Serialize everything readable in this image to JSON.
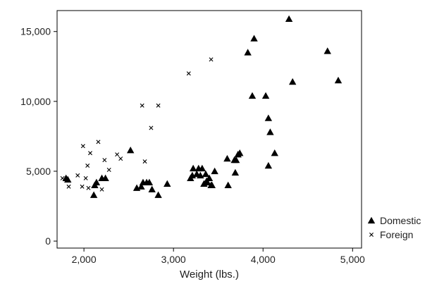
{
  "chart_data": {
    "type": "scatter",
    "xlabel": "Weight (lbs.)",
    "ylabel": "",
    "xlim": [
      1700,
      5100
    ],
    "ylim": [
      -500,
      16500
    ],
    "x_ticks": [
      2000,
      3000,
      4000,
      5000
    ],
    "x_tick_labels": [
      "2,000",
      "3,000",
      "4,000",
      "5,000"
    ],
    "y_ticks": [
      0,
      5000,
      10000,
      15000
    ],
    "y_tick_labels": [
      "0",
      "5,000",
      "10,000",
      "15,000"
    ],
    "grid": false,
    "legend_position": "bottom-right",
    "series": [
      {
        "name": "Domestic",
        "marker": "triangle",
        "color": "#000000",
        "points": [
          [
            1800,
            4500
          ],
          [
            1820,
            4400
          ],
          [
            2110,
            3300
          ],
          [
            2120,
            4000
          ],
          [
            2140,
            4200
          ],
          [
            2200,
            4500
          ],
          [
            2240,
            4500
          ],
          [
            2520,
            6500
          ],
          [
            2590,
            3800
          ],
          [
            2640,
            3900
          ],
          [
            2660,
            4200
          ],
          [
            2700,
            4200
          ],
          [
            2730,
            4200
          ],
          [
            2760,
            3700
          ],
          [
            2830,
            3300
          ],
          [
            2930,
            4100
          ],
          [
            3190,
            4500
          ],
          [
            3210,
            4700
          ],
          [
            3220,
            5200
          ],
          [
            3260,
            4800
          ],
          [
            3280,
            5200
          ],
          [
            3300,
            4700
          ],
          [
            3320,
            5200
          ],
          [
            3340,
            4100
          ],
          [
            3360,
            4800
          ],
          [
            3370,
            4300
          ],
          [
            3380,
            4200
          ],
          [
            3400,
            4500
          ],
          [
            3420,
            4000
          ],
          [
            3430,
            4000
          ],
          [
            3460,
            5000
          ],
          [
            3600,
            5900
          ],
          [
            3610,
            4000
          ],
          [
            3680,
            5800
          ],
          [
            3690,
            4900
          ],
          [
            3700,
            5800
          ],
          [
            3720,
            6200
          ],
          [
            3740,
            6300
          ],
          [
            3830,
            13500
          ],
          [
            3880,
            10400
          ],
          [
            3900,
            14500
          ],
          [
            4030,
            10400
          ],
          [
            4060,
            8800
          ],
          [
            4060,
            5400
          ],
          [
            4080,
            7800
          ],
          [
            4130,
            6300
          ],
          [
            4290,
            15900
          ],
          [
            4330,
            11400
          ],
          [
            4720,
            13600
          ],
          [
            4840,
            11500
          ]
        ]
      },
      {
        "name": "Foreign",
        "marker": "x",
        "color": "#000000",
        "points": [
          [
            1760,
            4500
          ],
          [
            1830,
            3900
          ],
          [
            1930,
            4700
          ],
          [
            1980,
            3900
          ],
          [
            1990,
            6800
          ],
          [
            2020,
            4500
          ],
          [
            2040,
            5400
          ],
          [
            2050,
            3800
          ],
          [
            2070,
            6300
          ],
          [
            2130,
            4000
          ],
          [
            2160,
            7100
          ],
          [
            2200,
            3700
          ],
          [
            2230,
            5800
          ],
          [
            2280,
            5100
          ],
          [
            2370,
            6200
          ],
          [
            2410,
            5900
          ],
          [
            2650,
            9700
          ],
          [
            2680,
            5700
          ],
          [
            2750,
            8100
          ],
          [
            2830,
            9700
          ],
          [
            3170,
            12000
          ],
          [
            3420,
            13000
          ]
        ]
      }
    ]
  }
}
